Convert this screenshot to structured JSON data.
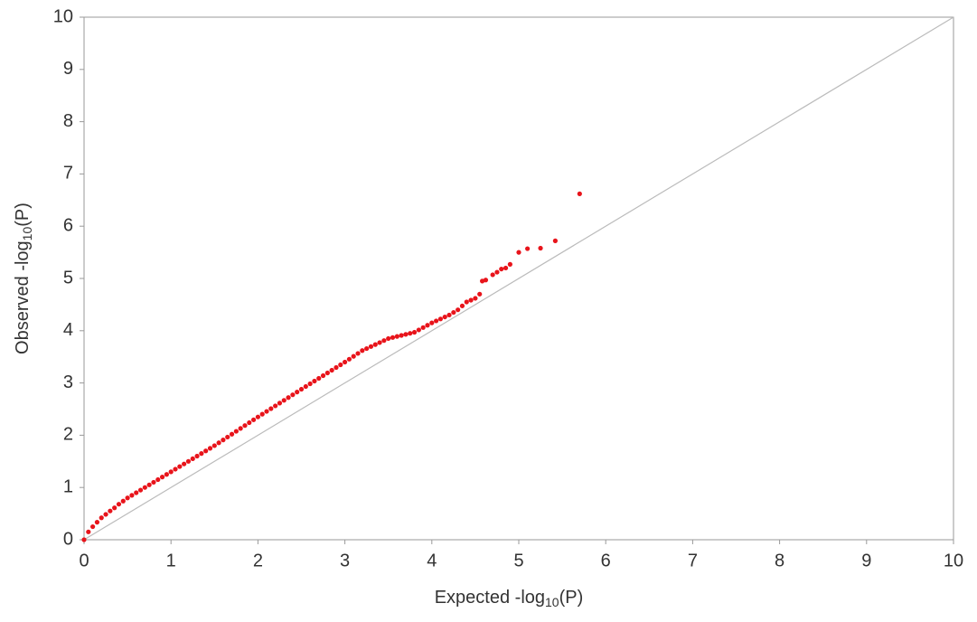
{
  "chart_data": {
    "type": "scatter",
    "xlabel": [
      "Expected -log",
      "10",
      "(P)"
    ],
    "ylabel": [
      "Observed -log",
      "10",
      "(P)"
    ],
    "color": "#e8141b",
    "xlim": [
      0,
      10
    ],
    "ylim": [
      0,
      10
    ],
    "xticks": [
      0,
      1,
      2,
      3,
      4,
      5,
      6,
      7,
      8,
      9,
      10
    ],
    "yticks": [
      0,
      1,
      2,
      3,
      4,
      5,
      6,
      7,
      8,
      9,
      10
    ],
    "grid": false,
    "x": [
      0,
      0.05,
      0.1,
      0.15,
      0.2,
      0.25,
      0.3,
      0.35,
      0.4,
      0.45,
      0.5,
      0.55,
      0.6,
      0.65,
      0.7,
      0.75,
      0.8,
      0.85,
      0.9,
      0.95,
      1.0,
      1.05,
      1.1,
      1.15,
      1.2,
      1.25,
      1.3,
      1.35,
      1.4,
      1.45,
      1.5,
      1.55,
      1.6,
      1.65,
      1.7,
      1.75,
      1.8,
      1.85,
      1.9,
      1.95,
      2.0,
      2.05,
      2.1,
      2.15,
      2.2,
      2.25,
      2.3,
      2.35,
      2.4,
      2.45,
      2.5,
      2.55,
      2.6,
      2.65,
      2.7,
      2.75,
      2.8,
      2.85,
      2.9,
      2.95,
      3.0,
      3.05,
      3.1,
      3.15,
      3.2,
      3.25,
      3.3,
      3.35,
      3.4,
      3.45,
      3.5,
      3.55,
      3.6,
      3.65,
      3.7,
      3.75,
      3.8,
      3.85,
      3.9,
      3.95,
      4.0,
      4.05,
      4.1,
      4.15,
      4.2,
      4.25,
      4.3,
      4.35,
      4.4,
      4.45,
      4.5,
      4.55,
      4.58,
      4.62,
      4.7,
      4.75,
      4.8,
      4.85,
      4.9,
      5.0,
      5.1,
      5.25,
      5.42,
      5.7
    ],
    "values": [
      0,
      0.15,
      0.25,
      0.335,
      0.42,
      0.485,
      0.55,
      0.61,
      0.68,
      0.74,
      0.8,
      0.85,
      0.9,
      0.95,
      1.0,
      1.05,
      1.1,
      1.15,
      1.2,
      1.25,
      1.3,
      1.35,
      1.4,
      1.45,
      1.5,
      1.55,
      1.6,
      1.65,
      1.7,
      1.75,
      1.8,
      1.855,
      1.91,
      1.965,
      2.02,
      2.075,
      2.13,
      2.185,
      2.24,
      2.295,
      2.35,
      2.403,
      2.456,
      2.509,
      2.562,
      2.615,
      2.668,
      2.721,
      2.774,
      2.827,
      2.88,
      2.932,
      2.984,
      3.036,
      3.088,
      3.14,
      3.192,
      3.244,
      3.296,
      3.348,
      3.4,
      3.455,
      3.51,
      3.565,
      3.62,
      3.658,
      3.697,
      3.735,
      3.773,
      3.812,
      3.85,
      3.87,
      3.89,
      3.91,
      3.93,
      3.95,
      3.97,
      4.015,
      4.06,
      4.105,
      4.15,
      4.188,
      4.225,
      4.263,
      4.3,
      4.35,
      4.4,
      4.475,
      4.55,
      4.585,
      4.62,
      4.7,
      4.95,
      4.97,
      5.07,
      5.12,
      5.18,
      5.2,
      5.27,
      5.5,
      5.57,
      5.58,
      5.72,
      6.62
    ]
  }
}
